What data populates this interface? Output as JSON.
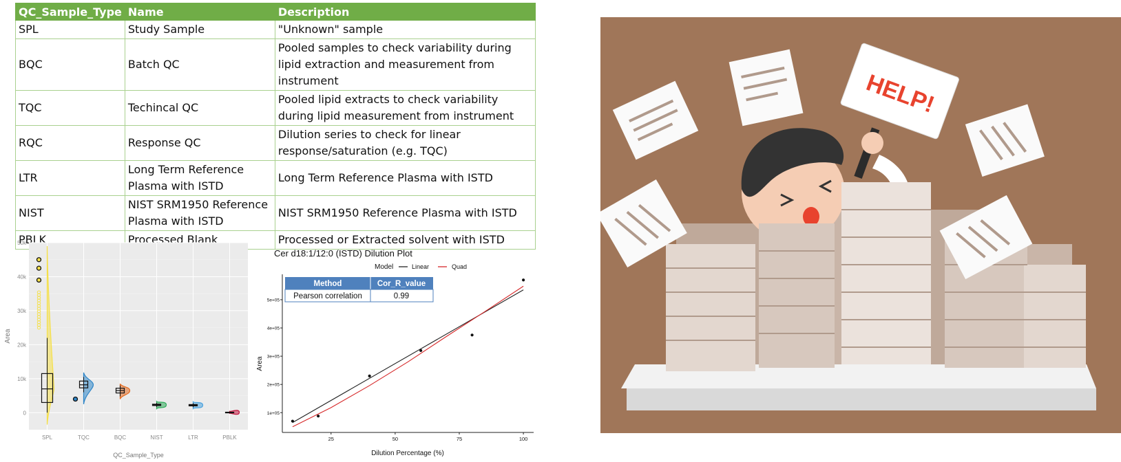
{
  "table": {
    "headers": [
      "QC_Sample_Type",
      "Name",
      "Description"
    ],
    "rows": [
      {
        "type": "SPL",
        "name": "Study Sample",
        "desc": "\"Unknown\" sample"
      },
      {
        "type": "BQC",
        "name": "Batch QC",
        "desc": "Pooled samples to check variability during lipid extraction and measurement from instrument"
      },
      {
        "type": "TQC",
        "name": "Techincal QC",
        "desc": "Pooled lipid extracts to check variability during lipid measurement from instrument"
      },
      {
        "type": "RQC",
        "name": "Response QC",
        "desc": "Dilution series to check for linear response/saturation (e.g. TQC)"
      },
      {
        "type": "LTR",
        "name": "Long Term Reference Plasma with ISTD",
        "desc": "Long Term Reference Plasma with ISTD"
      },
      {
        "type": "NIST",
        "name": "NIST SRM1950 Reference Plasma with ISTD",
        "desc": "NIST SRM1950 Reference Plasma with ISTD"
      },
      {
        "type": "PBLK",
        "name": "Processed Blank",
        "desc": "Processed or Extracted solvent with ISTD"
      }
    ]
  },
  "chart_data": [
    {
      "type": "violin",
      "title": "",
      "xlabel": "QC_Sample_Type",
      "ylabel": "Area",
      "categories": [
        "SPL",
        "TQC",
        "BQC",
        "NIST",
        "LTR",
        "PBLK"
      ],
      "y_ticks": [
        "0",
        "10k",
        "20k",
        "30k",
        "40k",
        "50k"
      ],
      "ylim": [
        -5000,
        50000
      ],
      "grid": true,
      "series": [
        {
          "category": "SPL",
          "color": "#f5e04a",
          "median": 7000,
          "q1": 3000,
          "q3": 11500,
          "whisker_low": 0,
          "whisker_high": 22000,
          "outliers": [
            39000,
            42500,
            45000
          ],
          "violin_min": -3500,
          "violin_max": 49000
        },
        {
          "category": "TQC",
          "color": "#2f86c8",
          "median": 8200,
          "q1": 7300,
          "q3": 9300,
          "whisker_low": 6000,
          "whisker_high": 10500,
          "outliers": [
            4000
          ],
          "violin_min": 2500,
          "violin_max": 11800
        },
        {
          "category": "BQC",
          "color": "#e36a1f",
          "median": 6500,
          "q1": 5800,
          "q3": 7200,
          "whisker_low": 4800,
          "whisker_high": 8000,
          "outliers": [],
          "violin_min": 4000,
          "violin_max": 8500
        },
        {
          "category": "NIST",
          "color": "#2eaa5a",
          "median": 2300,
          "q1": 2100,
          "q3": 2500,
          "whisker_low": 1700,
          "whisker_high": 2900,
          "outliers": [],
          "violin_min": 1200,
          "violin_max": 3300
        },
        {
          "category": "LTR",
          "color": "#4aa3df",
          "median": 2200,
          "q1": 2000,
          "q3": 2400,
          "whisker_low": 1600,
          "whisker_high": 2800,
          "outliers": [],
          "violin_min": 1200,
          "violin_max": 3200
        },
        {
          "category": "PBLK",
          "color": "#c0143c",
          "median": 100,
          "q1": 50,
          "q3": 150,
          "whisker_low": 0,
          "whisker_high": 200,
          "outliers": [],
          "violin_min": -200,
          "violin_max": 400
        }
      ]
    },
    {
      "type": "scatter",
      "title": "Cer d18:1/12:0 (ISTD) Dilution Plot",
      "xlabel": "Dilution Percentage (%)",
      "ylabel": "Area",
      "legend_title": "Model",
      "legend": [
        {
          "name": "Linear",
          "color": "#222222"
        },
        {
          "name": "Quad",
          "color": "#d62728"
        }
      ],
      "x_ticks": [
        25,
        50,
        75,
        100
      ],
      "y_ticks": [
        {
          "v": 100000,
          "label": "1e+05"
        },
        {
          "v": 200000,
          "label": "2e+05"
        },
        {
          "v": 300000,
          "label": "3e+05"
        },
        {
          "v": 400000,
          "label": "4e+05"
        },
        {
          "v": 500000,
          "label": "5e+05"
        }
      ],
      "xlim": [
        6,
        104
      ],
      "ylim": [
        30000,
        590000
      ],
      "points": [
        {
          "x": 10,
          "y": 70000
        },
        {
          "x": 20,
          "y": 88000
        },
        {
          "x": 40,
          "y": 230000
        },
        {
          "x": 60,
          "y": 320000
        },
        {
          "x": 80,
          "y": 375000
        },
        {
          "x": 100,
          "y": 570000
        }
      ],
      "linear_fit": [
        [
          10,
          65000
        ],
        [
          100,
          535000
        ]
      ],
      "quad_fit": [
        [
          10,
          50000
        ],
        [
          25,
          118000
        ],
        [
          40,
          196000
        ],
        [
          55,
          280000
        ],
        [
          70,
          370000
        ],
        [
          85,
          458000
        ],
        [
          100,
          548000
        ]
      ],
      "inset_table": {
        "headers": [
          "Method",
          "Cor_R_value"
        ],
        "rows": [
          [
            "Pearson correlation",
            "0.99"
          ]
        ]
      }
    }
  ],
  "illustration": {
    "sign_text": "HELP!",
    "background_color": "#a07659"
  }
}
